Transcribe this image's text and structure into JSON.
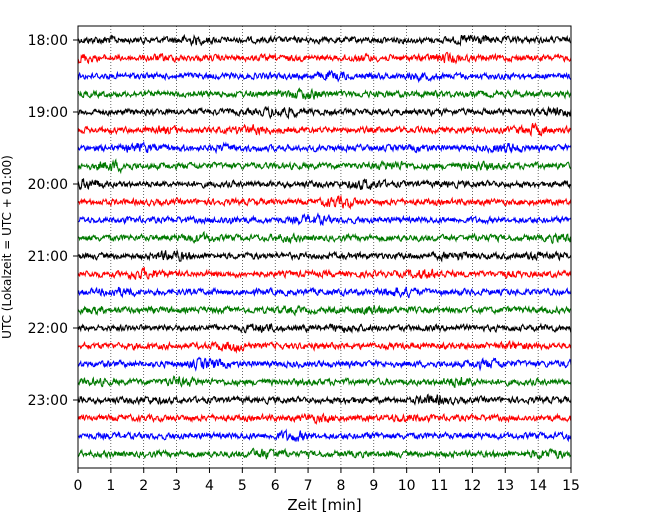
{
  "chart_data": {
    "type": "line",
    "title": "",
    "xlabel": "Zeit  [min]",
    "ylabel": "UTC (Lokalzeit = UTC + 01:00)",
    "xlim": [
      0,
      15
    ],
    "x_ticks": [
      "0",
      "1",
      "2",
      "3",
      "4",
      "5",
      "6",
      "7",
      "8",
      "9",
      "10",
      "11",
      "12",
      "13",
      "14",
      "15"
    ],
    "y_ticks": [
      "18:00",
      "19:00",
      "20:00",
      "21:00",
      "22:00",
      "23:00"
    ],
    "grid": "vertical dotted at each minute",
    "trace_interval_minutes": 15,
    "trace_start": "18:00",
    "trace_count": 24,
    "color_cycle": [
      "#000000",
      "#ff0000",
      "#0000ff",
      "#007a00"
    ],
    "series": [
      {
        "start": "18:00",
        "color": "#000000"
      },
      {
        "start": "18:15",
        "color": "#ff0000"
      },
      {
        "start": "18:30",
        "color": "#0000ff"
      },
      {
        "start": "18:45",
        "color": "#007a00"
      },
      {
        "start": "19:00",
        "color": "#000000"
      },
      {
        "start": "19:15",
        "color": "#ff0000"
      },
      {
        "start": "19:30",
        "color": "#0000ff"
      },
      {
        "start": "19:45",
        "color": "#007a00"
      },
      {
        "start": "20:00",
        "color": "#000000"
      },
      {
        "start": "20:15",
        "color": "#ff0000"
      },
      {
        "start": "20:30",
        "color": "#0000ff"
      },
      {
        "start": "20:45",
        "color": "#007a00"
      },
      {
        "start": "21:00",
        "color": "#000000"
      },
      {
        "start": "21:15",
        "color": "#ff0000"
      },
      {
        "start": "21:30",
        "color": "#0000ff"
      },
      {
        "start": "21:45",
        "color": "#007a00"
      },
      {
        "start": "22:00",
        "color": "#000000"
      },
      {
        "start": "22:15",
        "color": "#ff0000"
      },
      {
        "start": "22:30",
        "color": "#0000ff"
      },
      {
        "start": "22:45",
        "color": "#007a00"
      },
      {
        "start": "23:00",
        "color": "#000000"
      },
      {
        "start": "23:15",
        "color": "#ff0000"
      },
      {
        "start": "23:30",
        "color": "#0000ff"
      },
      {
        "start": "23:45",
        "color": "#007a00"
      }
    ]
  }
}
